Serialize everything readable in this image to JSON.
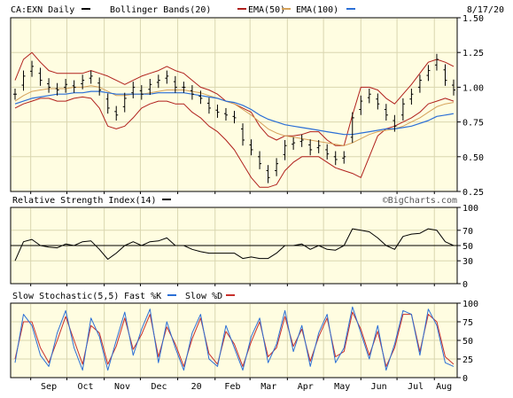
{
  "header": {
    "symbol": "CA:EXN Daily",
    "bollinger_label": "Bollinger Bands(20)",
    "ema50_label": "EMA(50)",
    "ema100_label": "EMA(100)",
    "date": "8/17/20"
  },
  "rsi_title": "Relative Strength Index(14)",
  "stoch_title": "Slow Stochastic(5,5)",
  "stoch_fast_label": "Fast %K",
  "stoch_slow_label": "Slow %D",
  "watermark": "©BigCharts.com",
  "colors": {
    "background": "#ffffff",
    "panel_bg": "#fffde1",
    "grid": "#d9d6b0",
    "price": "#000000",
    "bollinger": "#b0201c",
    "ema50": "#d4a15a",
    "ema100": "#2b6fd6",
    "fast_k": "#2b6fd6",
    "slow_d": "#c8302c"
  },
  "chart_data": [
    {
      "type": "line",
      "panel": "price",
      "chart_style": "ohlc-bars",
      "y_ticks": [
        "1.50",
        "1.25",
        "1.00",
        "0.75",
        "0.50",
        "0.25"
      ],
      "ylim": [
        0.25,
        1.5
      ],
      "x_tick_labels": [
        "Sep",
        "Oct",
        "Nov",
        "Dec",
        "20",
        "Feb",
        "Mar",
        "Apr",
        "May",
        "Jun",
        "Jul",
        "Aug"
      ],
      "x": [
        "2019-08-19",
        "2019-08-26",
        "2019-09-02",
        "2019-09-09",
        "2019-09-16",
        "2019-09-23",
        "2019-09-30",
        "2019-10-07",
        "2019-10-14",
        "2019-10-21",
        "2019-10-28",
        "2019-11-04",
        "2019-11-11",
        "2019-11-18",
        "2019-11-25",
        "2019-12-02",
        "2019-12-09",
        "2019-12-16",
        "2019-12-23",
        "2019-12-30",
        "2020-01-06",
        "2020-01-13",
        "2020-01-20",
        "2020-01-27",
        "2020-02-03",
        "2020-02-10",
        "2020-02-17",
        "2020-02-24",
        "2020-03-02",
        "2020-03-09",
        "2020-03-16",
        "2020-03-23",
        "2020-03-30",
        "2020-04-06",
        "2020-04-13",
        "2020-04-20",
        "2020-04-27",
        "2020-05-04",
        "2020-05-11",
        "2020-05-18",
        "2020-05-25",
        "2020-06-01",
        "2020-06-08",
        "2020-06-15",
        "2020-06-22",
        "2020-06-29",
        "2020-07-06",
        "2020-07-13",
        "2020-07-20",
        "2020-07-27",
        "2020-08-03",
        "2020-08-10",
        "2020-08-17"
      ],
      "series": [
        {
          "role": "price",
          "values": [
            0.95,
            1.08,
            1.15,
            1.05,
            1.0,
            0.98,
            1.02,
            1.0,
            1.05,
            1.08,
            0.98,
            0.85,
            0.8,
            0.92,
            1.0,
            0.95,
            1.02,
            1.05,
            1.08,
            1.0,
            1.0,
            0.95,
            0.92,
            0.85,
            0.82,
            0.8,
            0.78,
            0.62,
            0.55,
            0.45,
            0.35,
            0.45,
            0.58,
            0.6,
            0.62,
            0.55,
            0.58,
            0.52,
            0.48,
            0.5,
            0.78,
            0.9,
            0.95,
            0.88,
            0.8,
            0.72,
            0.88,
            0.95,
            1.05,
            1.12,
            1.2,
            1.05,
            0.98
          ]
        },
        {
          "name": "Bollinger Bands(20)",
          "role": "upper",
          "values": [
            1.05,
            1.2,
            1.25,
            1.18,
            1.12,
            1.1,
            1.1,
            1.1,
            1.1,
            1.12,
            1.1,
            1.08,
            1.05,
            1.02,
            1.05,
            1.08,
            1.1,
            1.12,
            1.15,
            1.12,
            1.1,
            1.05,
            1.0,
            0.98,
            0.95,
            0.9,
            0.88,
            0.85,
            0.82,
            0.72,
            0.65,
            0.62,
            0.65,
            0.65,
            0.66,
            0.68,
            0.68,
            0.62,
            0.58,
            0.58,
            0.8,
            1.0,
            1.0,
            0.98,
            0.92,
            0.88,
            0.95,
            1.02,
            1.1,
            1.18,
            1.2,
            1.18,
            1.15
          ]
        },
        {
          "name": "Bollinger Bands(20)",
          "role": "lower",
          "values": [
            0.85,
            0.88,
            0.9,
            0.92,
            0.92,
            0.9,
            0.9,
            0.92,
            0.93,
            0.92,
            0.85,
            0.72,
            0.7,
            0.72,
            0.78,
            0.85,
            0.88,
            0.9,
            0.9,
            0.88,
            0.88,
            0.82,
            0.78,
            0.72,
            0.68,
            0.62,
            0.55,
            0.45,
            0.35,
            0.28,
            0.28,
            0.3,
            0.4,
            0.46,
            0.5,
            0.5,
            0.5,
            0.46,
            0.42,
            0.4,
            0.38,
            0.35,
            0.5,
            0.65,
            0.7,
            0.72,
            0.75,
            0.78,
            0.82,
            0.88,
            0.9,
            0.92,
            0.9
          ]
        },
        {
          "name": "EMA(50)",
          "values": [
            0.9,
            0.94,
            0.97,
            0.98,
            0.99,
            0.99,
            0.99,
            1.0,
            1.0,
            1.01,
            1.0,
            0.97,
            0.94,
            0.94,
            0.95,
            0.95,
            0.96,
            0.97,
            0.98,
            0.98,
            0.98,
            0.97,
            0.96,
            0.94,
            0.92,
            0.9,
            0.88,
            0.84,
            0.8,
            0.75,
            0.7,
            0.67,
            0.65,
            0.64,
            0.63,
            0.62,
            0.61,
            0.6,
            0.59,
            0.58,
            0.6,
            0.63,
            0.66,
            0.68,
            0.69,
            0.7,
            0.72,
            0.75,
            0.78,
            0.82,
            0.86,
            0.88,
            0.89
          ]
        },
        {
          "name": "EMA(100)",
          "values": [
            0.88,
            0.9,
            0.92,
            0.93,
            0.94,
            0.95,
            0.95,
            0.96,
            0.96,
            0.97,
            0.97,
            0.96,
            0.95,
            0.95,
            0.95,
            0.95,
            0.95,
            0.96,
            0.96,
            0.96,
            0.96,
            0.95,
            0.94,
            0.93,
            0.92,
            0.9,
            0.89,
            0.87,
            0.84,
            0.8,
            0.77,
            0.75,
            0.73,
            0.72,
            0.71,
            0.7,
            0.69,
            0.68,
            0.67,
            0.66,
            0.66,
            0.67,
            0.68,
            0.69,
            0.7,
            0.7,
            0.71,
            0.72,
            0.74,
            0.76,
            0.79,
            0.8,
            0.81
          ]
        }
      ]
    },
    {
      "type": "line",
      "panel": "rsi",
      "y_ticks": [
        "100",
        "70",
        "50",
        "30",
        "0"
      ],
      "ylim": [
        0,
        100
      ],
      "reference_line": 50,
      "series": [
        {
          "values": [
            30,
            55,
            58,
            50,
            48,
            47,
            52,
            50,
            55,
            56,
            45,
            32,
            40,
            50,
            55,
            50,
            55,
            56,
            60,
            50,
            50,
            45,
            42,
            40,
            40,
            40,
            40,
            33,
            35,
            33,
            33,
            40,
            50,
            50,
            52,
            45,
            50,
            45,
            44,
            50,
            72,
            70,
            68,
            60,
            50,
            45,
            62,
            65,
            66,
            72,
            70,
            55,
            50
          ]
        }
      ]
    },
    {
      "type": "line",
      "panel": "stochastic",
      "y_ticks": [
        "100",
        "75",
        "50",
        "25",
        "0"
      ],
      "ylim": [
        0,
        100
      ],
      "series": [
        {
          "name": "Fast %K",
          "values": [
            20,
            85,
            70,
            30,
            15,
            60,
            90,
            40,
            10,
            80,
            55,
            10,
            50,
            88,
            30,
            65,
            92,
            20,
            75,
            40,
            10,
            60,
            85,
            25,
            15,
            70,
            40,
            10,
            55,
            80,
            20,
            45,
            90,
            35,
            70,
            15,
            60,
            85,
            20,
            40,
            95,
            60,
            25,
            70,
            10,
            45,
            90,
            85,
            30,
            92,
            70,
            20,
            15
          ]
        },
        {
          "name": "Slow %D",
          "values": [
            25,
            75,
            75,
            40,
            20,
            50,
            82,
            50,
            18,
            70,
            60,
            18,
            42,
            80,
            38,
            58,
            85,
            28,
            68,
            45,
            15,
            52,
            80,
            32,
            18,
            62,
            45,
            15,
            48,
            75,
            28,
            40,
            82,
            42,
            65,
            22,
            55,
            80,
            28,
            35,
            88,
            65,
            30,
            62,
            15,
            40,
            85,
            85,
            35,
            85,
            75,
            28,
            18
          ]
        }
      ]
    }
  ]
}
